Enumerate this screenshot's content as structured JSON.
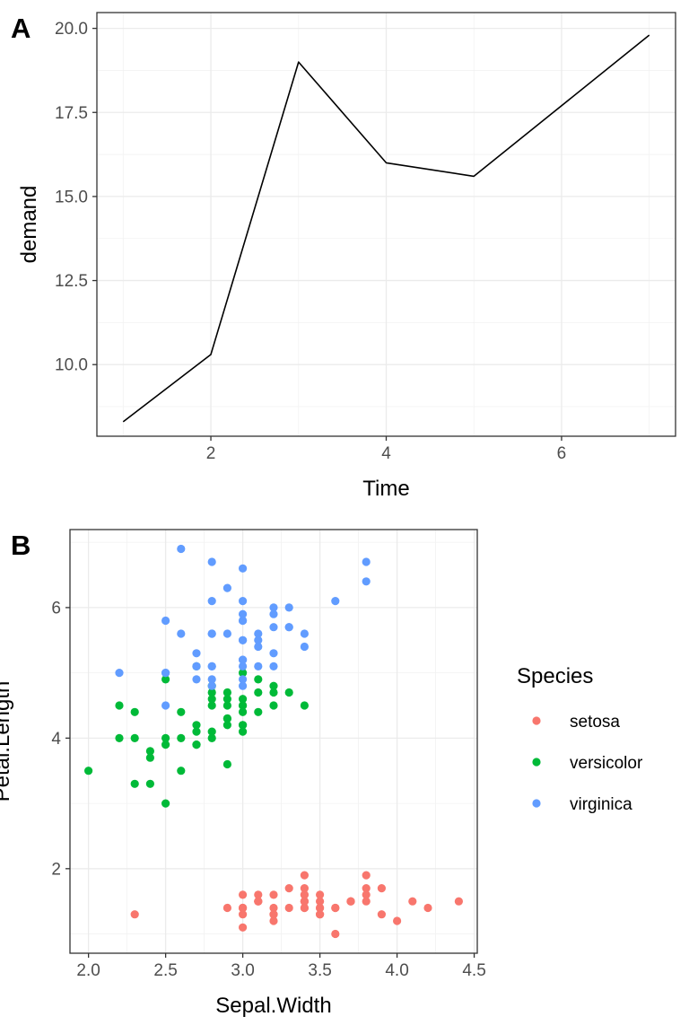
{
  "chart_data": [
    {
      "type": "line",
      "tag": "A",
      "xlabel": "Time",
      "ylabel": "demand",
      "x": [
        1,
        2,
        3,
        4,
        5,
        7
      ],
      "y": [
        8.3,
        10.3,
        19.0,
        16.0,
        15.6,
        19.8
      ],
      "xlim": [
        0.7,
        7.3
      ],
      "ylim": [
        7.87,
        20.47
      ],
      "xticks": [
        2,
        4,
        6
      ],
      "xtick_labels": [
        "2",
        "4",
        "6"
      ],
      "yticks": [
        10,
        12.5,
        15,
        17.5,
        20
      ],
      "ytick_labels": [
        "10.0",
        "12.5",
        "15.0",
        "17.5",
        "20.0"
      ],
      "line_color": "#000000",
      "grid": true,
      "theme": "bw"
    },
    {
      "type": "scatter",
      "tag": "B",
      "xlabel": "Sepal.Width",
      "ylabel": "Petal.Length",
      "xlim": [
        1.88,
        4.52
      ],
      "ylim": [
        0.705,
        7.195
      ],
      "xticks": [
        2.0,
        2.5,
        3.0,
        3.5,
        4.0,
        4.5
      ],
      "xtick_labels": [
        "2.0",
        "2.5",
        "3.0",
        "3.5",
        "4.0",
        "4.5"
      ],
      "yticks": [
        2,
        4,
        6
      ],
      "ytick_labels": [
        "2",
        "4",
        "6"
      ],
      "grid": true,
      "legend_title": "Species",
      "legend_position": "right",
      "series": [
        {
          "name": "setosa",
          "color": "#F8766D",
          "x": [
            3.5,
            3.0,
            3.2,
            3.1,
            3.6,
            3.9,
            3.4,
            3.4,
            2.9,
            3.1,
            3.7,
            3.4,
            3.0,
            3.0,
            4.0,
            4.4,
            3.9,
            3.5,
            3.8,
            3.8,
            3.4,
            3.7,
            3.6,
            3.3,
            3.4,
            3.0,
            3.4,
            3.5,
            3.4,
            3.2,
            3.1,
            3.4,
            4.1,
            4.2,
            3.1,
            3.2,
            3.5,
            3.6,
            3.0,
            3.4,
            3.5,
            2.3,
            3.2,
            3.5,
            3.8,
            3.0,
            3.8,
            3.2,
            3.7,
            3.3
          ],
          "y": [
            1.4,
            1.4,
            1.3,
            1.5,
            1.4,
            1.7,
            1.4,
            1.5,
            1.4,
            1.5,
            1.5,
            1.6,
            1.4,
            1.1,
            1.2,
            1.5,
            1.3,
            1.4,
            1.7,
            1.5,
            1.7,
            1.5,
            1.0,
            1.7,
            1.9,
            1.6,
            1.6,
            1.5,
            1.4,
            1.6,
            1.6,
            1.5,
            1.5,
            1.4,
            1.5,
            1.2,
            1.3,
            1.4,
            1.3,
            1.5,
            1.3,
            1.3,
            1.3,
            1.6,
            1.9,
            1.4,
            1.6,
            1.4,
            1.5,
            1.4
          ]
        },
        {
          "name": "versicolor",
          "color": "#00BA38",
          "x": [
            3.2,
            3.2,
            3.1,
            2.3,
            2.8,
            2.8,
            3.3,
            2.4,
            2.9,
            2.7,
            2.0,
            3.0,
            2.2,
            2.9,
            2.9,
            3.1,
            3.0,
            2.7,
            2.2,
            2.5,
            3.2,
            2.8,
            2.5,
            2.8,
            2.9,
            3.0,
            2.8,
            3.0,
            2.9,
            2.6,
            2.4,
            2.4,
            2.7,
            2.7,
            3.0,
            3.4,
            3.1,
            2.3,
            3.0,
            2.5,
            2.6,
            3.0,
            2.6,
            2.3,
            2.7,
            3.0,
            2.9,
            2.9,
            2.5,
            2.8
          ],
          "y": [
            4.7,
            4.5,
            4.9,
            4.0,
            4.6,
            4.5,
            4.7,
            3.3,
            4.6,
            3.9,
            3.5,
            4.2,
            4.0,
            4.7,
            3.6,
            4.4,
            4.5,
            4.1,
            4.5,
            3.9,
            4.8,
            4.0,
            4.9,
            4.7,
            4.3,
            4.4,
            4.8,
            5.0,
            4.5,
            3.5,
            3.8,
            3.7,
            3.9,
            5.1,
            4.5,
            4.5,
            4.7,
            4.4,
            4.1,
            4.0,
            4.4,
            4.6,
            4.0,
            3.3,
            4.2,
            4.2,
            4.2,
            4.3,
            3.0,
            4.1
          ]
        },
        {
          "name": "virginica",
          "color": "#619CFF",
          "x": [
            3.3,
            2.7,
            3.0,
            2.9,
            3.0,
            3.0,
            2.5,
            2.9,
            2.5,
            3.6,
            3.2,
            2.7,
            3.0,
            2.5,
            2.8,
            3.2,
            3.0,
            3.8,
            2.6,
            2.2,
            3.2,
            2.8,
            2.8,
            2.7,
            3.3,
            3.2,
            2.8,
            3.0,
            2.8,
            3.0,
            2.8,
            3.8,
            2.8,
            2.8,
            2.6,
            3.0,
            3.4,
            3.1,
            3.0,
            3.1,
            3.1,
            3.1,
            2.7,
            3.2,
            3.3,
            3.0,
            2.5,
            3.0,
            3.4,
            3.0
          ],
          "y": [
            6.0,
            5.1,
            5.9,
            5.6,
            5.8,
            6.6,
            4.5,
            6.3,
            5.8,
            6.1,
            5.1,
            5.3,
            5.5,
            5.0,
            5.1,
            5.3,
            5.5,
            6.7,
            6.9,
            5.0,
            5.7,
            4.9,
            6.7,
            4.9,
            5.7,
            6.0,
            4.8,
            4.9,
            5.6,
            5.8,
            6.1,
            6.4,
            5.6,
            5.1,
            5.6,
            6.1,
            5.6,
            5.5,
            4.8,
            5.4,
            5.6,
            5.1,
            5.1,
            5.9,
            5.7,
            5.2,
            5.0,
            5.2,
            5.4,
            5.1
          ]
        }
      ]
    }
  ]
}
